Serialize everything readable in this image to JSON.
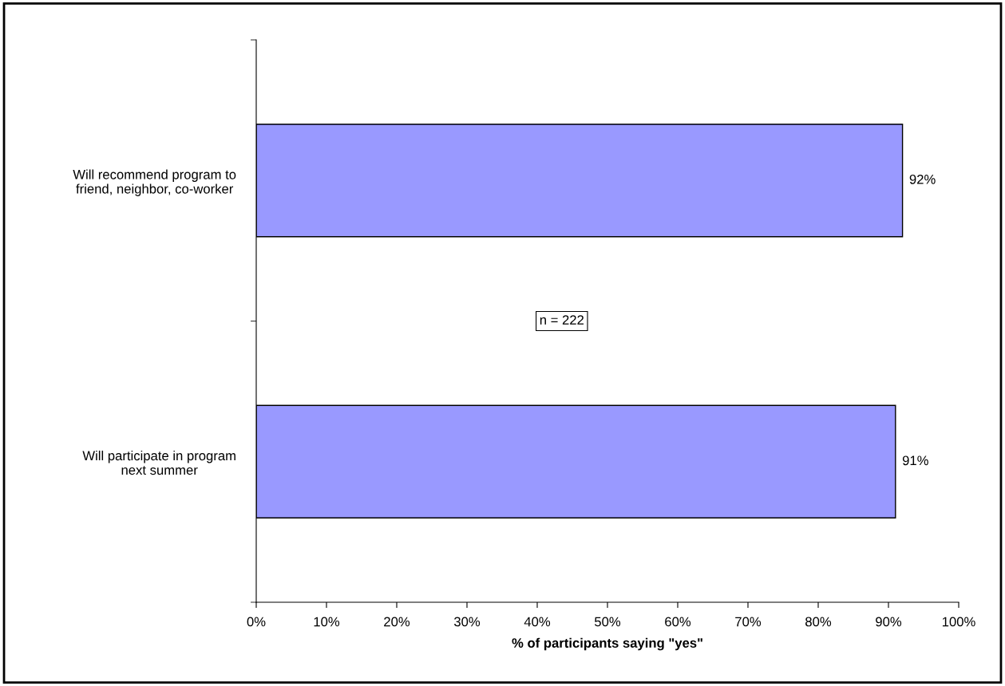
{
  "chart_data": {
    "type": "bar",
    "orientation": "horizontal",
    "categories": [
      "Will recommend program to\nfriend, neighbor, co-worker",
      "Will participate in program\nnext summer"
    ],
    "values": [
      92,
      91
    ],
    "value_labels": [
      "92%",
      "91%"
    ],
    "color": "#9999ff",
    "xlabel": "% of participants saying \"yes\"",
    "xlim": [
      0,
      100
    ],
    "xticks": [
      {
        "value": 0,
        "label": "0%"
      },
      {
        "value": 10,
        "label": "10%"
      },
      {
        "value": 20,
        "label": "20%"
      },
      {
        "value": 30,
        "label": "30%"
      },
      {
        "value": 40,
        "label": "40%"
      },
      {
        "value": 50,
        "label": "50%"
      },
      {
        "value": 60,
        "label": "60%"
      },
      {
        "value": 70,
        "label": "70%"
      },
      {
        "value": 80,
        "label": "80%"
      },
      {
        "value": 90,
        "label": "90%"
      },
      {
        "value": 100,
        "label": "100%"
      }
    ],
    "annotations": [
      "n = 222"
    ],
    "grid": false,
    "legend": false
  }
}
